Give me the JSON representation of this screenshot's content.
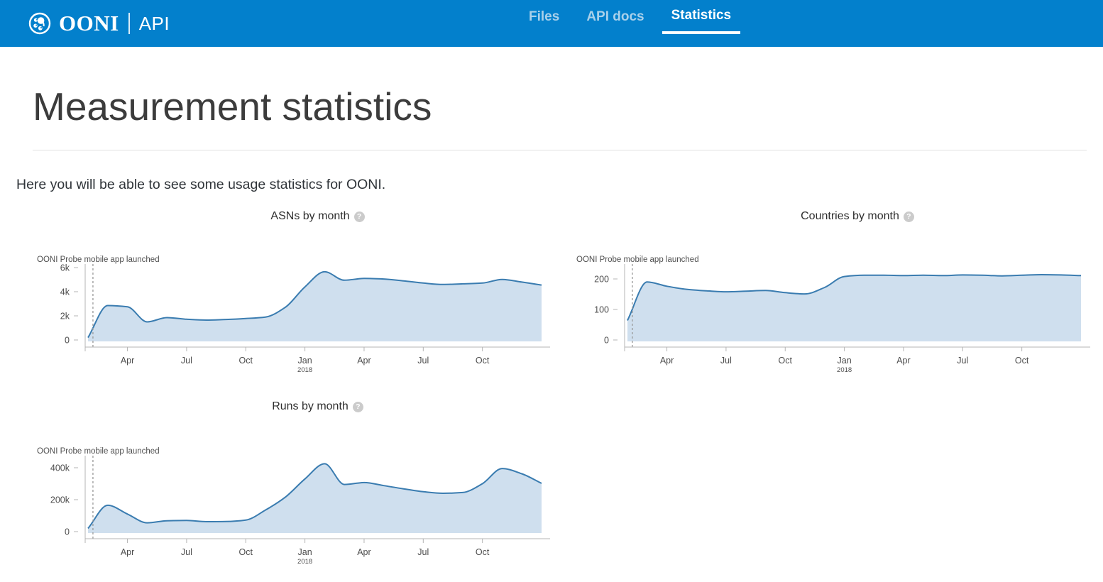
{
  "ui": {
    "help_glyph": "?"
  },
  "colors": {
    "header_background": "#0380cc",
    "nav_active": "#ffffff",
    "nav_inactive": "#a9d0ea",
    "chart_line": "#3a7cb0",
    "chart_fill": "#cfdfee",
    "annotation_dash": "#999999"
  },
  "header": {
    "brand": {
      "name": "OONI",
      "product": "API"
    },
    "nav": [
      {
        "label": "Files",
        "active": false
      },
      {
        "label": "API docs",
        "active": false
      },
      {
        "label": "Statistics",
        "active": true
      }
    ]
  },
  "page": {
    "title": "Measurement statistics",
    "intro": "Here you will be able to see some usage statistics for OONI."
  },
  "chart_data": [
    {
      "type": "area",
      "title": "ASNs by month",
      "x": [
        "2017-02",
        "2017-03",
        "2017-04",
        "2017-05",
        "2017-06",
        "2017-07",
        "2017-08",
        "2017-09",
        "2017-10",
        "2017-11",
        "2017-12",
        "2018-01",
        "2018-02",
        "2018-03",
        "2018-04",
        "2018-05",
        "2018-06",
        "2018-07",
        "2018-08",
        "2018-09",
        "2018-10",
        "2018-11",
        "2018-12",
        "2019-01"
      ],
      "values": [
        200,
        2850,
        2750,
        1500,
        1850,
        1720,
        1650,
        1700,
        1780,
        1900,
        2700,
        4400,
        5650,
        4950,
        5100,
        5050,
        4900,
        4720,
        4600,
        4650,
        4720,
        5020,
        4800,
        4550
      ],
      "ylim": [
        0,
        6300
      ],
      "yticks": [
        {
          "value": 0,
          "label": "0"
        },
        {
          "value": 2000,
          "label": "2k"
        },
        {
          "value": 4000,
          "label": "4k"
        },
        {
          "value": 6000,
          "label": "6k"
        }
      ],
      "xticks": [
        {
          "label": "Apr"
        },
        {
          "label": "Jul"
        },
        {
          "label": "Oct"
        },
        {
          "label": "Jan",
          "year": "2018"
        },
        {
          "label": "Apr"
        },
        {
          "label": "Jul"
        },
        {
          "label": "Oct"
        }
      ],
      "grid": false,
      "annotation": {
        "label": "OONI Probe mobile app launched",
        "x_month": "2017-02"
      }
    },
    {
      "type": "area",
      "title": "Countries by month",
      "x": [
        "2017-02",
        "2017-03",
        "2017-04",
        "2017-05",
        "2017-06",
        "2017-07",
        "2017-08",
        "2017-09",
        "2017-10",
        "2017-11",
        "2017-12",
        "2018-01",
        "2018-02",
        "2018-03",
        "2018-04",
        "2018-05",
        "2018-06",
        "2018-07",
        "2018-08",
        "2018-09",
        "2018-10",
        "2018-11",
        "2018-12",
        "2019-01"
      ],
      "values": [
        64,
        190,
        176,
        166,
        161,
        158,
        160,
        162,
        155,
        151,
        172,
        208,
        212,
        212,
        211,
        212,
        211,
        213,
        212,
        210,
        212,
        214,
        213,
        211
      ],
      "ylim": [
        0,
        230
      ],
      "yticks": [
        {
          "value": 0,
          "label": "0"
        },
        {
          "value": 100,
          "label": "100"
        },
        {
          "value": 200,
          "label": "200"
        }
      ],
      "xticks": [
        {
          "label": "Apr"
        },
        {
          "label": "Jul"
        },
        {
          "label": "Oct"
        },
        {
          "label": "Jan",
          "year": "2018"
        },
        {
          "label": "Apr"
        },
        {
          "label": "Jul"
        },
        {
          "label": "Oct"
        }
      ],
      "grid": false,
      "annotation": {
        "label": "OONI Probe mobile app launched",
        "x_month": "2017-02"
      }
    },
    {
      "type": "area",
      "title": "Runs by month",
      "x": [
        "2017-02",
        "2017-03",
        "2017-04",
        "2017-05",
        "2017-06",
        "2017-07",
        "2017-08",
        "2017-09",
        "2017-10",
        "2017-11",
        "2017-12",
        "2018-01",
        "2018-02",
        "2018-03",
        "2018-04",
        "2018-05",
        "2018-06",
        "2018-07",
        "2018-08",
        "2018-09",
        "2018-10",
        "2018-11",
        "2018-12",
        "2019-01"
      ],
      "values": [
        20000,
        165000,
        110000,
        55000,
        68000,
        70000,
        62000,
        63000,
        72000,
        135000,
        215000,
        330000,
        425000,
        295000,
        307000,
        288000,
        268000,
        250000,
        240000,
        245000,
        300000,
        395000,
        362000,
        302000
      ],
      "ylim": [
        0,
        450000
      ],
      "yticks": [
        {
          "value": 0,
          "label": "0"
        },
        {
          "value": 200000,
          "label": "200k"
        },
        {
          "value": 400000,
          "label": "400k"
        }
      ],
      "xticks": [
        {
          "label": "Apr"
        },
        {
          "label": "Jul"
        },
        {
          "label": "Oct"
        },
        {
          "label": "Jan",
          "year": "2018"
        },
        {
          "label": "Apr"
        },
        {
          "label": "Jul"
        },
        {
          "label": "Oct"
        }
      ],
      "grid": false,
      "annotation": {
        "label": "OONI Probe mobile app launched",
        "x_month": "2017-02"
      }
    }
  ]
}
